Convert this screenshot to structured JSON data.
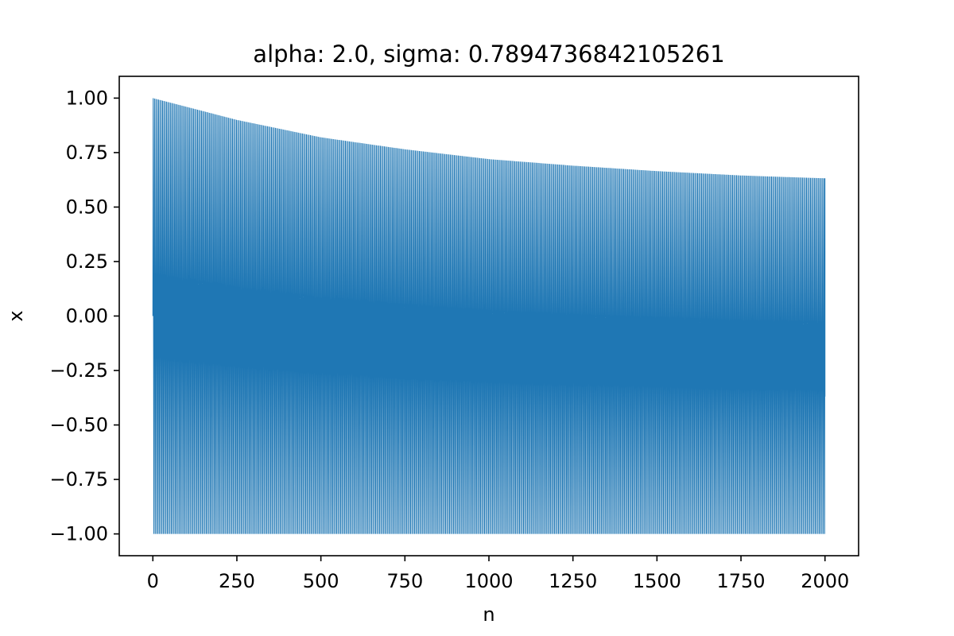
{
  "chart_data": {
    "type": "line",
    "title": "alpha: 2.0, sigma: 0.7894736842105261",
    "xlabel": "n",
    "ylabel": "x",
    "xlim": [
      -100,
      2100
    ],
    "ylim": [
      -1.1,
      1.1
    ],
    "grid": false,
    "legend": "none",
    "xticks": [
      0,
      250,
      500,
      750,
      1000,
      1250,
      1500,
      1750,
      2000
    ],
    "xtick_labels": [
      "0",
      "250",
      "500",
      "750",
      "1000",
      "1250",
      "1500",
      "1750",
      "2000"
    ],
    "yticks": [
      1.0,
      0.75,
      0.5,
      0.25,
      0.0,
      -0.25,
      -0.5,
      -0.75,
      -1.0
    ],
    "ytick_labels": [
      "1.00",
      "0.75",
      "0.50",
      "0.25",
      "0.00",
      "−0.25",
      "−0.50",
      "−0.75",
      "−1.00"
    ],
    "series": [
      {
        "color": "#1f77b4",
        "description": "alternating sequence oscillating between a decaying positive upper envelope and -1.00",
        "x_range": [
          0,
          2000
        ],
        "x_start_value": 0.0,
        "upper_envelope": {
          "x": [
            0,
            250,
            500,
            750,
            1000,
            1250,
            1500,
            1750,
            1880,
            2000
          ],
          "y": [
            1.0,
            0.9,
            0.82,
            0.765,
            0.72,
            0.69,
            0.665,
            0.645,
            0.638,
            0.632
          ]
        },
        "lower_envelope": {
          "x": [
            0,
            2000
          ],
          "y": [
            -1.0,
            -1.0
          ]
        },
        "x_end_value": -0.37
      }
    ]
  }
}
